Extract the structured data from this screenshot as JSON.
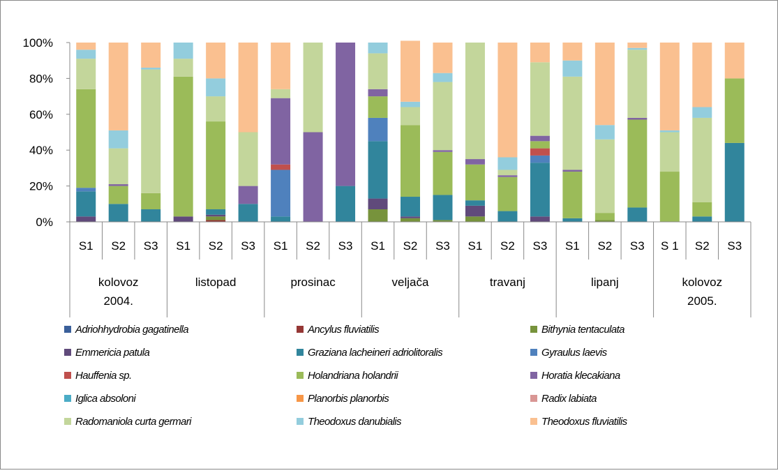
{
  "chart_data": {
    "type": "stacked_bar_percent",
    "categories": [
      "S1",
      "S2",
      "S3",
      "S1",
      "S2",
      "S3",
      "S1",
      "S2",
      "S3",
      "S1",
      "S2",
      "S3",
      "S1",
      "S2",
      "S3",
      "S1",
      "S2",
      "S3",
      "S 1",
      "S2",
      "S3"
    ],
    "groups": [
      "kolovoz 2004.",
      "listopad",
      "prosinac",
      "veljača",
      "travanj",
      "lipanj",
      "kolovoz 2005."
    ],
    "ylim": [
      0,
      100
    ],
    "yticks": [
      {
        "value": 0,
        "label": "0%"
      },
      {
        "value": 20,
        "label": "20%"
      },
      {
        "value": 40,
        "label": "40%"
      },
      {
        "value": 60,
        "label": "60%"
      },
      {
        "value": 80,
        "label": "80%"
      },
      {
        "value": 100,
        "label": "100%"
      }
    ],
    "series": [
      {
        "name": "Adriohhydrobia gagatinella",
        "color": "#3a5f9a",
        "values": [
          0,
          0,
          0,
          0,
          0,
          0,
          0,
          0,
          0,
          0,
          0,
          0,
          0,
          0,
          0,
          0,
          0,
          0,
          0,
          0,
          0
        ]
      },
      {
        "name": "Ancylus fluviatilis",
        "color": "#953735",
        "values": [
          0,
          0,
          0,
          0,
          1,
          0,
          0,
          0,
          0,
          0,
          0,
          0,
          0,
          0,
          0,
          0,
          0,
          0,
          0,
          0,
          0
        ]
      },
      {
        "name": "Bithynia tentaculata",
        "color": "#77933c",
        "values": [
          0,
          0,
          0,
          0,
          2,
          0,
          0,
          0,
          0,
          7,
          2,
          1,
          3,
          0,
          0,
          0,
          1,
          0,
          0,
          0,
          0
        ]
      },
      {
        "name": "Emmericia patula",
        "color": "#604a7b",
        "values": [
          3,
          0,
          0,
          3,
          1,
          0,
          0,
          0,
          0,
          6,
          1,
          0,
          6,
          0,
          3,
          0,
          0,
          0,
          0,
          0,
          0
        ]
      },
      {
        "name": "Graziana lacheineri adriolitoralis",
        "color": "#31859c",
        "values": [
          14,
          10,
          7,
          0,
          3,
          10,
          3,
          0,
          20,
          32,
          11,
          14,
          3,
          6,
          30,
          2,
          0,
          8,
          0,
          3,
          44
        ]
      },
      {
        "name": "Gyraulus laevis",
        "color": "#4f81bd",
        "values": [
          2,
          0,
          0,
          0,
          0,
          0,
          26,
          0,
          0,
          13,
          0,
          0,
          0,
          0,
          4,
          0,
          0,
          0,
          0,
          0,
          0
        ]
      },
      {
        "name": "Hauffenia sp.",
        "color": "#c0504d",
        "values": [
          0,
          0,
          0,
          0,
          0,
          0,
          3,
          0,
          0,
          0,
          0,
          0,
          0,
          0,
          4,
          0,
          0,
          0,
          0,
          0,
          0
        ]
      },
      {
        "name": "Holandriana holandrii",
        "color": "#9bbb59",
        "values": [
          55,
          10,
          9,
          78,
          49,
          0,
          0,
          0,
          0,
          12,
          40,
          24,
          20,
          19,
          4,
          26,
          4,
          49,
          28,
          8,
          36
        ]
      },
      {
        "name": "Horatia klecakiana",
        "color": "#8064a2",
        "values": [
          0,
          1,
          0,
          0,
          0,
          10,
          37,
          50,
          80,
          4,
          0,
          1,
          3,
          1,
          3,
          1,
          0,
          1,
          0,
          0,
          0
        ]
      },
      {
        "name": "Iglica absoloni",
        "color": "#4bacc6",
        "values": [
          0,
          0,
          0,
          0,
          0,
          0,
          0,
          0,
          0,
          0,
          0,
          0,
          0,
          0,
          0,
          0,
          0,
          0,
          0,
          0,
          0
        ]
      },
      {
        "name": "Planorbis planorbis",
        "color": "#f79646",
        "values": [
          0,
          0,
          0,
          0,
          0,
          0,
          0,
          0,
          0,
          0,
          0,
          0,
          0,
          0,
          0,
          0,
          0,
          0,
          0,
          0,
          0
        ]
      },
      {
        "name": "Radix labiata",
        "color": "#d99694",
        "values": [
          0,
          0,
          0,
          0,
          0,
          0,
          0,
          0,
          0,
          0,
          0,
          0,
          0,
          0,
          0,
          0,
          0,
          0,
          0,
          0,
          0
        ]
      },
      {
        "name": "Radomaniola curta germari",
        "color": "#c3d69b",
        "values": [
          17,
          20,
          69,
          10,
          14,
          30,
          5,
          50,
          0,
          20,
          10,
          38,
          65,
          3,
          41,
          52,
          41,
          38,
          22,
          47,
          0
        ]
      },
      {
        "name": "Theodoxus danubialis",
        "color": "#93cddd",
        "values": [
          5,
          10,
          1,
          9,
          10,
          0,
          0,
          0,
          0,
          6,
          3,
          5,
          0,
          7,
          0,
          9,
          8,
          1,
          1,
          6,
          0
        ]
      },
      {
        "name": "Theodoxus fluviatilis",
        "color": "#fac090",
        "values": [
          4,
          49,
          14,
          0,
          20,
          50,
          26,
          0,
          0,
          0,
          34,
          17,
          0,
          64,
          11,
          10,
          46,
          3,
          49,
          36,
          20
        ]
      }
    ]
  }
}
